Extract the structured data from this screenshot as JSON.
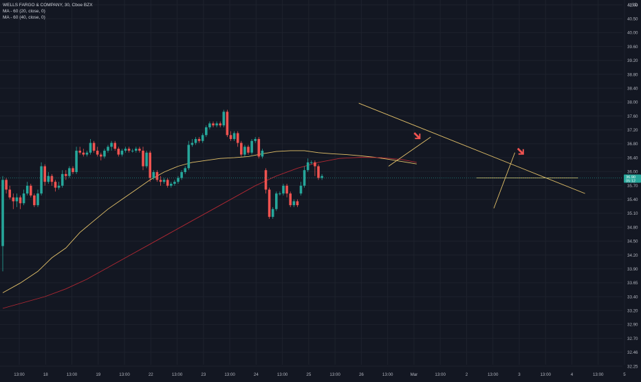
{
  "legend": {
    "symbol_line": "WELLS FARGO & COMPANY, 30, Cboe BZX",
    "ma1_label": "MA - 60 (20, close, 0)",
    "ma2_label": "MA - 60 (40, close, 0)"
  },
  "chart_data": {
    "type": "candlestick",
    "symbol": "WELLS FARGO & COMPANY",
    "interval": "30",
    "exchange": "Cboe BZX",
    "currency": "USD",
    "ylim": [
      32.1,
      41.4
    ],
    "y_ticks": [
      "41.00",
      "40.50",
      "40.00",
      "39.60",
      "39.20",
      "38.80",
      "38.40",
      "38.00",
      "37.60",
      "37.20",
      "36.80",
      "36.40",
      "36.00",
      "35.70",
      "35.40",
      "35.10",
      "34.80",
      "34.50",
      "34.20",
      "33.90",
      "33.65",
      "33.40",
      "33.20",
      "32.90",
      "32.70",
      "32.46",
      "32.25"
    ],
    "x_ticks": [
      "13:00",
      "18",
      "13:00",
      "19",
      "13:00",
      "22",
      "13:00",
      "23",
      "13:00",
      "24",
      "13:00",
      "25",
      "13:00",
      "26",
      "13:00",
      "Mar",
      "13:00",
      "2",
      "13:00",
      "3",
      "13:00",
      "4",
      "13:00",
      "5"
    ],
    "price_label": "36.90",
    "countdown_label": "05:12",
    "current_price": 36.9,
    "colors": {
      "up": "#26a69a",
      "down": "#ef5350",
      "ma20": "#e6c36a",
      "ma40": "#b22833",
      "trendline": "#e6c36a",
      "signal_arrow": "#ef5350"
    },
    "candles": [
      [
        35.15,
        36.85,
        36.95,
        34.5
      ],
      [
        36.85,
        36.6,
        36.9,
        36.5
      ],
      [
        36.6,
        36.4,
        36.7,
        36.35
      ],
      [
        36.4,
        36.3,
        36.5,
        36.1
      ],
      [
        36.3,
        36.4,
        36.5,
        36.15
      ],
      [
        36.4,
        36.25,
        36.45,
        36.1
      ],
      [
        36.25,
        36.5,
        36.6,
        36.2
      ],
      [
        36.5,
        36.7,
        36.8,
        36.45
      ],
      [
        36.7,
        36.45,
        36.75,
        36.4
      ],
      [
        36.45,
        36.2,
        36.5,
        36.15
      ],
      [
        36.2,
        36.5,
        36.6,
        36.15
      ],
      [
        36.5,
        37.2,
        37.3,
        36.45
      ],
      [
        37.2,
        36.8,
        37.25,
        36.7
      ],
      [
        36.8,
        36.95,
        37.05,
        36.75
      ],
      [
        36.95,
        36.8,
        37.0,
        36.7
      ],
      [
        36.8,
        36.65,
        36.85,
        36.55
      ],
      [
        36.65,
        36.7,
        36.8,
        36.6
      ],
      [
        36.7,
        37.0,
        37.1,
        36.65
      ],
      [
        37.0,
        36.95,
        37.1,
        36.85
      ],
      [
        36.95,
        37.15,
        37.2,
        36.9
      ],
      [
        37.15,
        37.05,
        37.2,
        37.0
      ],
      [
        37.05,
        37.6,
        37.7,
        37.0
      ],
      [
        37.6,
        37.55,
        37.7,
        37.5
      ],
      [
        37.55,
        37.5,
        37.65,
        37.45
      ],
      [
        37.5,
        37.55,
        37.6,
        37.45
      ],
      [
        37.55,
        37.8,
        37.9,
        37.5
      ],
      [
        37.8,
        37.6,
        37.85,
        37.55
      ],
      [
        37.6,
        37.5,
        37.7,
        37.45
      ],
      [
        37.5,
        37.45,
        37.55,
        37.35
      ],
      [
        37.45,
        37.6,
        37.65,
        37.4
      ],
      [
        37.6,
        37.7,
        37.75,
        37.55
      ],
      [
        37.7,
        37.8,
        37.85,
        37.6
      ],
      [
        37.8,
        37.65,
        37.85,
        37.6
      ],
      [
        37.65,
        37.5,
        37.7,
        37.45
      ],
      [
        37.5,
        37.6,
        37.65,
        37.45
      ],
      [
        37.6,
        37.65,
        37.7,
        37.55
      ],
      [
        37.65,
        37.6,
        37.7,
        37.55
      ],
      [
        37.6,
        37.6,
        37.65,
        37.55
      ],
      [
        37.6,
        37.65,
        37.7,
        37.55
      ],
      [
        37.65,
        37.6,
        37.7,
        37.55
      ],
      [
        37.6,
        37.2,
        37.7,
        37.1
      ],
      [
        37.2,
        37.55,
        37.6,
        37.15
      ],
      [
        37.55,
        36.9,
        37.6,
        36.8
      ],
      [
        36.9,
        37.05,
        37.1,
        36.85
      ],
      [
        37.05,
        36.85,
        37.1,
        36.8
      ],
      [
        36.85,
        36.8,
        36.95,
        36.7
      ],
      [
        36.8,
        36.85,
        36.9,
        36.75
      ],
      [
        36.85,
        36.7,
        36.9,
        36.65
      ],
      [
        36.7,
        36.75,
        36.8,
        36.65
      ],
      [
        36.75,
        36.8,
        36.85,
        36.7
      ],
      [
        36.8,
        36.9,
        36.95,
        36.75
      ],
      [
        36.9,
        37.05,
        37.1,
        36.85
      ],
      [
        37.05,
        37.15,
        37.2,
        37.0
      ],
      [
        37.15,
        37.75,
        37.85,
        37.1
      ],
      [
        37.75,
        37.8,
        37.9,
        37.7
      ],
      [
        37.8,
        37.9,
        37.95,
        37.75
      ],
      [
        37.9,
        37.85,
        37.95,
        37.8
      ],
      [
        37.85,
        38.0,
        38.05,
        37.8
      ],
      [
        38.0,
        38.2,
        38.25,
        37.95
      ],
      [
        38.2,
        38.3,
        38.35,
        38.15
      ],
      [
        38.3,
        38.25,
        38.35,
        38.2
      ],
      [
        38.25,
        38.3,
        38.35,
        38.2
      ],
      [
        38.3,
        38.25,
        38.35,
        38.2
      ],
      [
        38.25,
        38.6,
        38.65,
        38.2
      ],
      [
        38.6,
        38.0,
        38.65,
        37.95
      ],
      [
        38.0,
        37.9,
        38.1,
        37.85
      ],
      [
        37.9,
        38.05,
        38.1,
        37.85
      ],
      [
        38.05,
        37.8,
        38.1,
        37.7
      ],
      [
        37.8,
        37.5,
        37.85,
        37.45
      ],
      [
        37.5,
        37.7,
        37.75,
        37.45
      ],
      [
        37.7,
        37.55,
        37.75,
        37.5
      ],
      [
        37.55,
        37.85,
        37.9,
        37.5
      ],
      [
        37.85,
        37.9,
        37.95,
        37.8
      ],
      [
        37.9,
        37.45,
        37.95,
        37.4
      ],
      [
        37.45,
        37.6,
        37.65,
        37.4
      ],
      [
        37.1,
        36.6,
        37.15,
        36.5
      ],
      [
        36.6,
        35.9,
        36.65,
        35.85
      ],
      [
        35.9,
        36.1,
        36.15,
        35.85
      ],
      [
        36.1,
        36.5,
        36.55,
        36.05
      ],
      [
        36.5,
        36.5,
        36.55,
        36.45
      ],
      [
        36.5,
        36.7,
        36.75,
        36.45
      ],
      [
        36.7,
        36.5,
        36.75,
        36.4
      ],
      [
        36.5,
        36.2,
        36.55,
        36.15
      ],
      [
        36.2,
        36.3,
        36.35,
        36.15
      ],
      [
        36.3,
        36.2,
        36.35,
        36.15
      ],
      [
        36.5,
        36.7,
        36.8,
        36.45
      ],
      [
        36.7,
        37.1,
        37.2,
        36.65
      ],
      [
        37.1,
        37.3,
        37.4,
        37.05
      ],
      [
        37.3,
        37.3,
        37.35,
        37.25
      ],
      [
        37.3,
        37.2,
        37.35,
        36.95
      ],
      [
        37.2,
        36.9,
        37.25,
        36.85
      ],
      [
        36.9,
        36.95,
        37.0,
        36.85
      ]
    ],
    "ma20": [
      [
        0,
        33.95
      ],
      [
        5,
        34.2
      ],
      [
        10,
        34.5
      ],
      [
        14,
        34.85
      ],
      [
        18,
        35.1
      ],
      [
        22,
        35.5
      ],
      [
        26,
        35.8
      ],
      [
        30,
        36.1
      ],
      [
        34,
        36.35
      ],
      [
        38,
        36.6
      ],
      [
        42,
        36.85
      ],
      [
        46,
        37.05
      ],
      [
        50,
        37.2
      ],
      [
        54,
        37.3
      ],
      [
        58,
        37.35
      ],
      [
        62,
        37.4
      ],
      [
        66,
        37.42
      ],
      [
        70,
        37.45
      ],
      [
        74,
        37.52
      ],
      [
        78,
        37.58
      ],
      [
        82,
        37.6
      ],
      [
        86,
        37.6
      ],
      [
        90,
        37.55
      ],
      [
        94,
        37.52
      ],
      [
        98,
        37.5
      ],
      [
        102,
        37.47
      ],
      [
        106,
        37.43
      ],
      [
        110,
        37.38
      ],
      [
        114,
        37.32
      ],
      [
        118,
        37.26
      ]
    ],
    "ma40": [
      [
        0,
        33.55
      ],
      [
        6,
        33.7
      ],
      [
        12,
        33.85
      ],
      [
        18,
        34.05
      ],
      [
        24,
        34.3
      ],
      [
        30,
        34.6
      ],
      [
        36,
        34.9
      ],
      [
        42,
        35.2
      ],
      [
        48,
        35.5
      ],
      [
        54,
        35.8
      ],
      [
        60,
        36.1
      ],
      [
        66,
        36.4
      ],
      [
        72,
        36.7
      ],
      [
        78,
        36.95
      ],
      [
        84,
        37.15
      ],
      [
        90,
        37.3
      ],
      [
        96,
        37.4
      ],
      [
        102,
        37.43
      ],
      [
        108,
        37.42
      ],
      [
        114,
        37.37
      ],
      [
        118,
        37.3
      ]
    ],
    "trendlines": [
      {
        "from": [
          101.5,
          38.82
        ],
        "to": [
          166,
          36.5
        ]
      },
      {
        "from": [
          110,
          37.2
        ],
        "to": [
          122,
          37.95
        ]
      },
      {
        "from": [
          140,
          36.12
        ],
        "to": [
          146,
          37.55
        ]
      },
      {
        "from": [
          135,
          36.9
        ],
        "to": [
          164,
          36.9
        ]
      }
    ],
    "signal_arrows": [
      [
        118.5,
        37.95
      ],
      [
        148,
        37.55
      ]
    ]
  }
}
